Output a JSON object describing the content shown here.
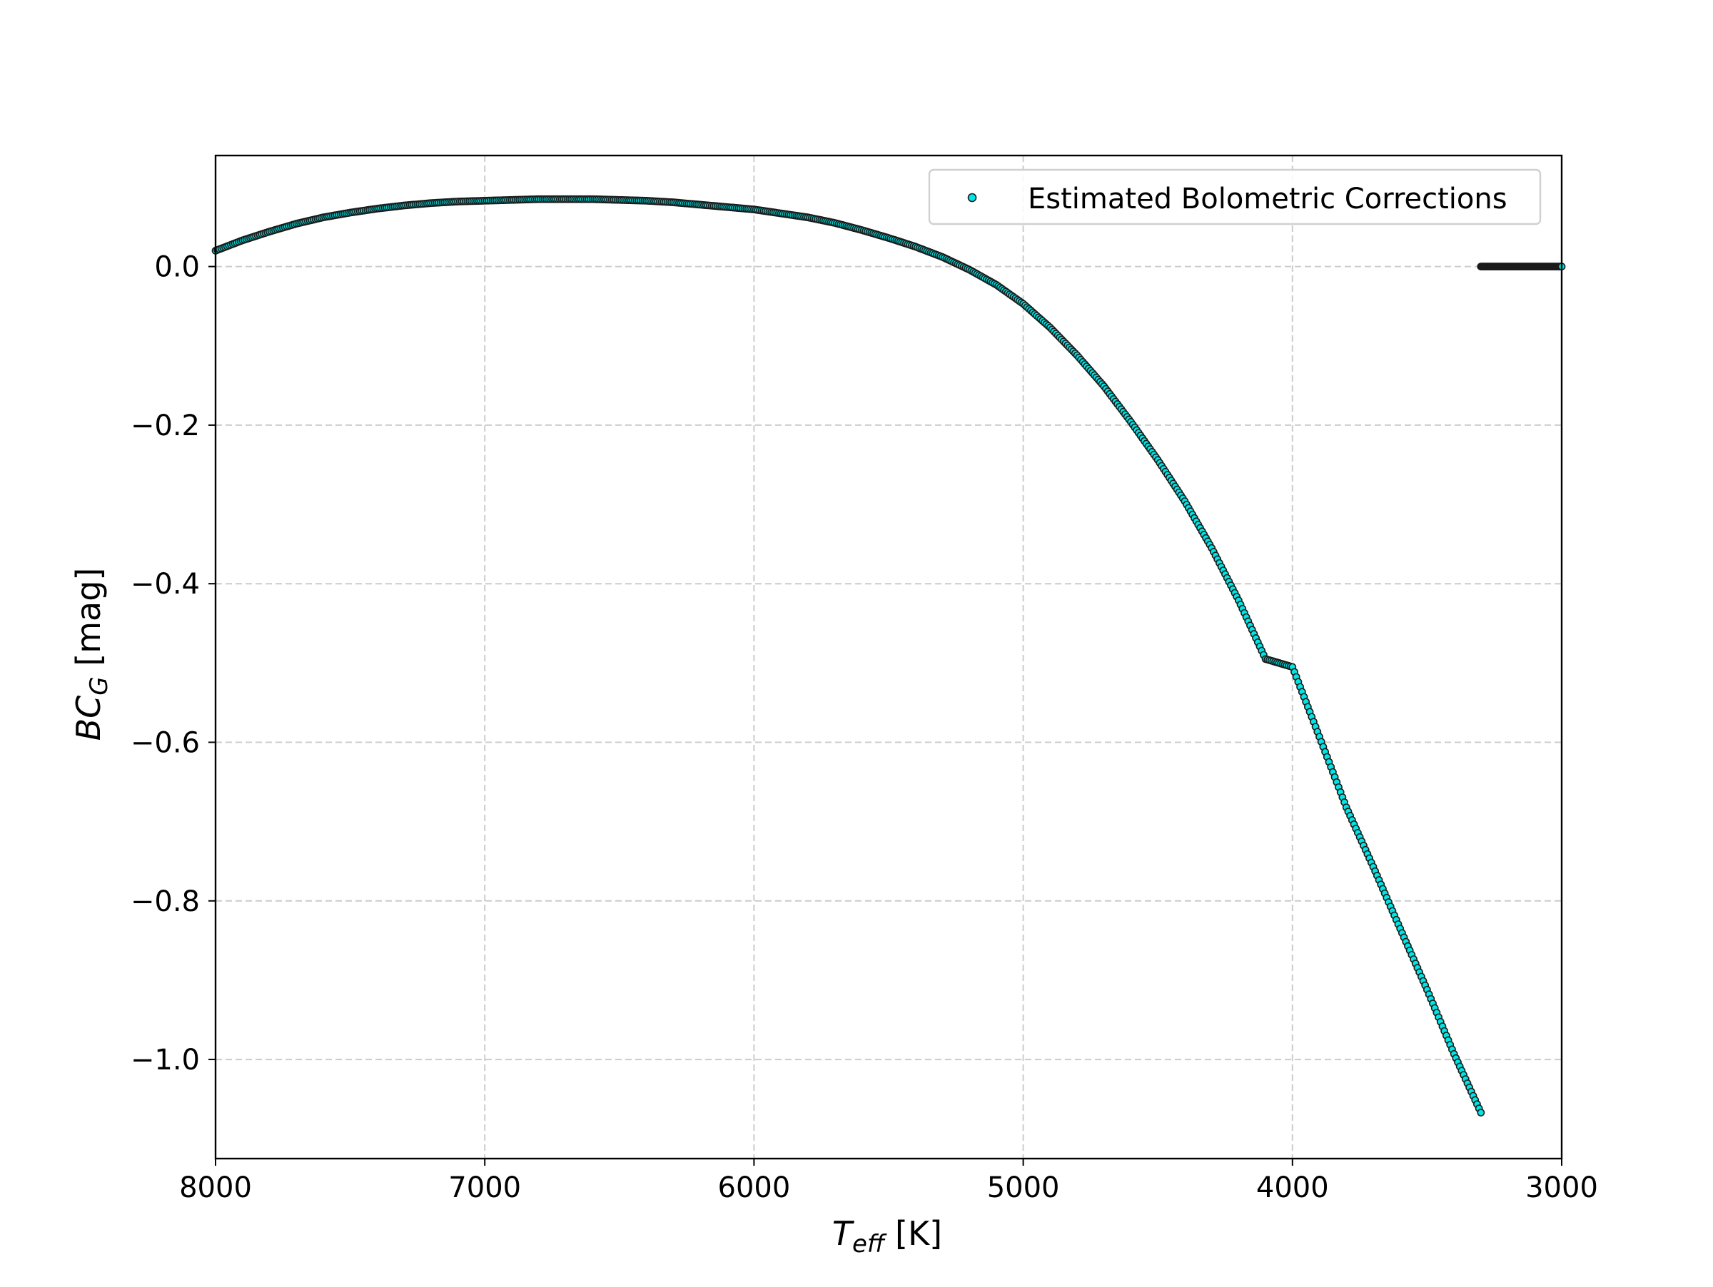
{
  "chart_data": {
    "type": "scatter",
    "title": "",
    "xlabel_main": "T",
    "xlabel_sub": "eff",
    "xlabel_unit": " [K]",
    "ylabel_main": "BC",
    "ylabel_sub": "G",
    "ylabel_unit": " [mag]",
    "xlim": [
      8000,
      3000
    ],
    "ylim": [
      -1.125,
      0.14
    ],
    "x_reversed": true,
    "grid": true,
    "legend_position": "upper right",
    "x_ticks": [
      {
        "value": 8000,
        "label": "8000"
      },
      {
        "value": 7000,
        "label": "7000"
      },
      {
        "value": 6000,
        "label": "6000"
      },
      {
        "value": 5000,
        "label": "5000"
      },
      {
        "value": 4000,
        "label": "4000"
      },
      {
        "value": 3000,
        "label": "3000"
      }
    ],
    "y_ticks": [
      {
        "value": 0.0,
        "label": "0.0"
      },
      {
        "value": -0.2,
        "label": "−0.2"
      },
      {
        "value": -0.4,
        "label": "−0.4"
      },
      {
        "value": -0.6,
        "label": "−0.6"
      },
      {
        "value": -0.8,
        "label": "−0.8"
      },
      {
        "value": -1.0,
        "label": "−1.0"
      }
    ],
    "series": [
      {
        "name": "Estimated Bolometric Corrections",
        "marker_fill": "#00e5e5",
        "marker_edge": "#1a1a1a",
        "x": [
          8000,
          7900,
          7800,
          7700,
          7600,
          7500,
          7400,
          7300,
          7200,
          7100,
          7000,
          6900,
          6800,
          6700,
          6600,
          6500,
          6400,
          6300,
          6200,
          6100,
          6000,
          5900,
          5800,
          5700,
          5600,
          5500,
          5400,
          5300,
          5200,
          5100,
          5000,
          4900,
          4800,
          4700,
          4600,
          4500,
          4400,
          4300,
          4200,
          4100,
          4000,
          3900,
          3800,
          3700,
          3600,
          3500,
          3400,
          3300,
          3300,
          3250,
          3200,
          3150,
          3100,
          3050,
          3000
        ],
        "y": [
          0.02,
          0.033,
          0.044,
          0.054,
          0.062,
          0.068,
          0.073,
          0.077,
          0.08,
          0.082,
          0.083,
          0.084,
          0.085,
          0.085,
          0.085,
          0.084,
          0.083,
          0.081,
          0.078,
          0.075,
          0.072,
          0.067,
          0.062,
          0.055,
          0.046,
          0.036,
          0.025,
          0.012,
          -0.004,
          -0.023,
          -0.047,
          -0.077,
          -0.112,
          -0.151,
          -0.196,
          -0.244,
          -0.296,
          -0.355,
          -0.421,
          -0.495,
          -0.505,
          -0.593,
          -0.682,
          -0.757,
          -0.835,
          -0.912,
          -0.993,
          -1.067,
          0.0,
          0.0,
          0.0,
          0.0,
          0.0,
          0.0,
          0.0
        ]
      }
    ]
  },
  "colors": {
    "grid": "#cccccc",
    "axis": "#000000",
    "legend_border": "#d0d0d0"
  }
}
